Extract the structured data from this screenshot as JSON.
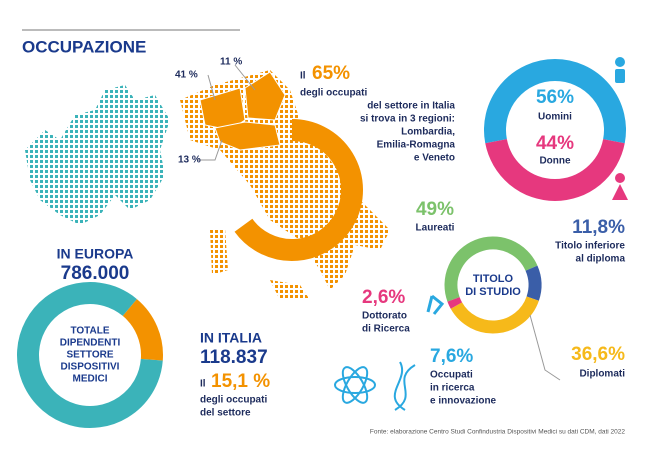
{
  "header": {
    "title": "OCCUPAZIONE"
  },
  "regions": {
    "shares": [
      "41 %",
      "11 %",
      "13 %"
    ],
    "prefix": "Il",
    "total": {
      "value": 65,
      "label": "65%",
      "color": "#f39200"
    },
    "lines": [
      "degli occupati",
      "del settore in Italia",
      "si trova in 3 regioni:",
      "Lombardia,",
      "Emilia-Romagna",
      "e Veneto"
    ]
  },
  "gender": {
    "segments": [
      {
        "value": 56,
        "label": "56%",
        "name": "Uomini",
        "color": "#29a8e0"
      },
      {
        "value": 44,
        "label": "44%",
        "name": "Donne",
        "color": "#e6387e"
      }
    ]
  },
  "europe": {
    "heading": "IN EUROPA",
    "number": "786.000"
  },
  "italy": {
    "center_lines": [
      "TOTALE",
      "DIPENDENTI",
      "SETTORE",
      "DISPOSITIVI",
      "MEDICI"
    ],
    "heading": "IN ITALIA",
    "number": "118.837",
    "prefix": "Il",
    "share": {
      "value": 15.1,
      "label": "15,1 %",
      "color": "#f39200",
      "rest_color": "#3bb3b9"
    },
    "lines": [
      "degli occupati",
      "del settore"
    ]
  },
  "education": {
    "center_lines": [
      "TITOLO",
      "DI STUDIO"
    ],
    "segments": [
      {
        "value": 49,
        "label": "49%",
        "name": [
          "Laureati"
        ],
        "color": "#7cc26b"
      },
      {
        "value": 11.8,
        "label": "11,8%",
        "name": [
          "Titolo inferiore",
          "al diploma"
        ],
        "color": "#3a5ea8"
      },
      {
        "value": 36.6,
        "label": "36,6%",
        "name": [
          "Diplomati"
        ],
        "color": "#f6b91a"
      },
      {
        "value": 2.6,
        "label": "2,6%",
        "name": [
          "Dottorato",
          "di Ricerca"
        ],
        "color": "#e6387e"
      }
    ],
    "research": {
      "label": "7,6%",
      "lines": [
        "Occupati",
        "in ricerca",
        "e innovazione"
      ]
    }
  },
  "footer": {
    "source": "Fonte: elaborazione Centro Studi Confindustria Dispositivi Medici su dati CDM, dati 2022"
  }
}
